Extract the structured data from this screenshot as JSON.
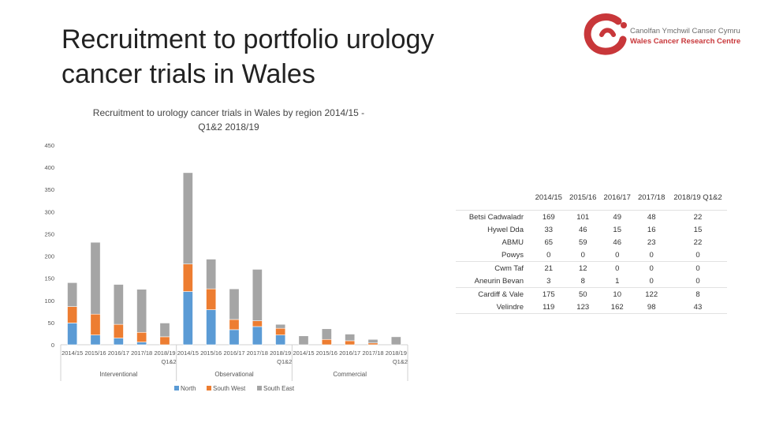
{
  "slide": {
    "title_line1": "Recruitment to portfolio urology",
    "title_line2": "cancer trials in Wales"
  },
  "logo": {
    "line1": "Canolfan Ymchwil Canser Cymru",
    "line2": "Wales Cancer Research Centre",
    "colors": {
      "red": "#c8373a",
      "grey": "#6b6b6b"
    }
  },
  "chart_data": {
    "type": "bar",
    "stacked": true,
    "title_line1": "Recruitment to urology cancer trials in Wales by region 2014/15 -",
    "title_line2": "Q1&2 2018/19",
    "ylim": [
      0,
      450
    ],
    "yticks": [
      "0",
      "50",
      "100",
      "150",
      "200",
      "250",
      "300",
      "350",
      "400",
      "450"
    ],
    "groups": [
      "Interventional",
      "Observational",
      "Commercial"
    ],
    "categories": [
      "2014/15",
      "2015/16",
      "2016/17",
      "2017/18",
      "2018/19 Q1&2",
      "2014/15",
      "2015/16",
      "2016/17",
      "2017/18",
      "2018/19 Q1&2",
      "2014/15",
      "2015/16",
      "2016/17",
      "2017/18",
      "2018/19 Q1&2"
    ],
    "series": [
      {
        "name": "North",
        "color": "#5b9bd5",
        "values": [
          49,
          22,
          15,
          6,
          0,
          120,
          79,
          34,
          41,
          22,
          0,
          0,
          0,
          0,
          0
        ]
      },
      {
        "name": "South West",
        "color": "#ed7d31",
        "values": [
          37,
          47,
          31,
          22,
          18,
          62,
          47,
          23,
          13,
          15,
          0,
          12,
          9,
          4,
          0
        ]
      },
      {
        "name": "South East",
        "color": "#a5a5a5",
        "values": [
          54,
          162,
          90,
          97,
          31,
          206,
          67,
          69,
          116,
          9,
          20,
          24,
          15,
          8,
          18
        ]
      }
    ],
    "legend_position": "bottom",
    "grid": false
  },
  "table": {
    "headers": [
      "2014/15",
      "2015/16",
      "2016/17",
      "2017/18",
      "2018/19 Q1&2"
    ],
    "rows": [
      {
        "label": "Betsi Cadwaladr",
        "values": [
          "169",
          "101",
          "49",
          "48",
          "22"
        ]
      },
      {
        "label": "Hywel Dda",
        "values": [
          "33",
          "46",
          "15",
          "16",
          "15"
        ]
      },
      {
        "label": "ABMU",
        "values": [
          "65",
          "59",
          "46",
          "23",
          "22"
        ]
      },
      {
        "label": "Powys",
        "values": [
          "0",
          "0",
          "0",
          "0",
          "0"
        ]
      },
      {
        "label": "Cwm Taf",
        "values": [
          "21",
          "12",
          "0",
          "0",
          "0"
        ]
      },
      {
        "label": "Aneurin Bevan",
        "values": [
          "3",
          "8",
          "1",
          "0",
          "0"
        ]
      },
      {
        "label": "Cardiff & Vale",
        "values": [
          "175",
          "50",
          "10",
          "122",
          "8"
        ]
      },
      {
        "label": "Velindre",
        "values": [
          "119",
          "123",
          "162",
          "98",
          "43"
        ]
      }
    ]
  }
}
